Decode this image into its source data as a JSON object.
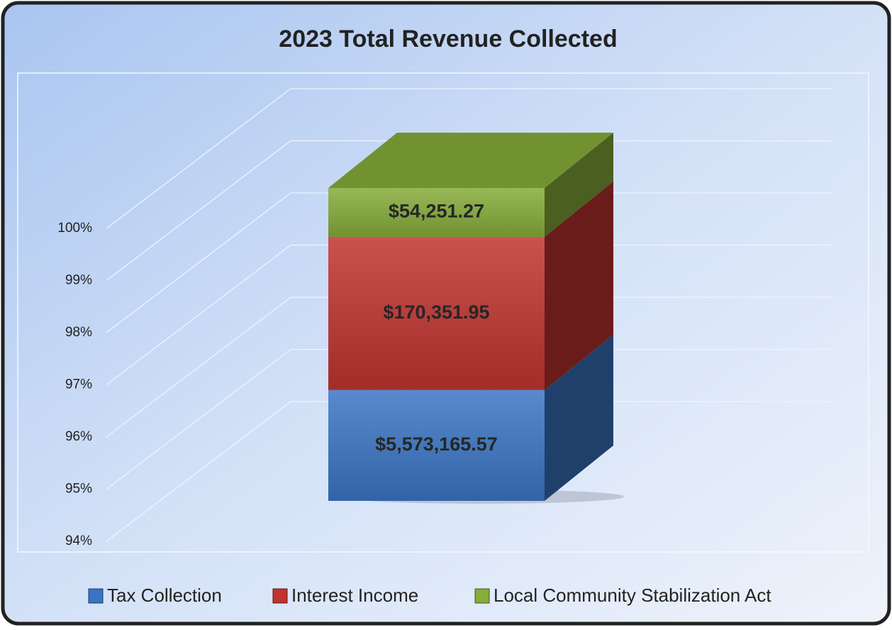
{
  "chart_data": {
    "type": "bar",
    "stack": "percent",
    "title": "2023 Total Revenue Collected",
    "categories": [
      null
    ],
    "series": [
      {
        "name": "Tax Collection",
        "color": "#3a75c4",
        "values": [
          5573165.57
        ],
        "value_labels": [
          "$5,573,165.57"
        ]
      },
      {
        "name": "Interest Income",
        "color": "#c0332f",
        "values": [
          170351.95
        ],
        "value_labels": [
          "$170,351.95"
        ]
      },
      {
        "name": "Local Community Stabilization Act",
        "color": "#86ac3a",
        "values": [
          54251.27
        ],
        "value_labels": [
          "$54,251.27"
        ]
      }
    ],
    "ylim": [
      94,
      100
    ],
    "yticks": [
      {
        "value": 94,
        "label": "94%"
      },
      {
        "value": 95,
        "label": "95%"
      },
      {
        "value": 96,
        "label": "96%"
      },
      {
        "value": 97,
        "label": "97%"
      },
      {
        "value": 98,
        "label": "98%"
      },
      {
        "value": 99,
        "label": "99%"
      },
      {
        "value": 100,
        "label": "100%"
      }
    ],
    "grid": true,
    "legend": "bottom"
  }
}
